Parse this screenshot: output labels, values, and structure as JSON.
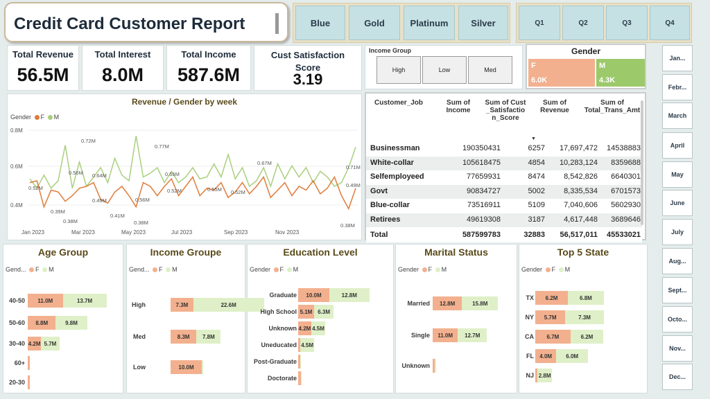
{
  "title": "Credit Card Customer Report",
  "card_category": [
    "Blue",
    "Gold",
    "Platinum",
    "Silver"
  ],
  "quarters": [
    "Q1",
    "Q2",
    "Q3",
    "Q4"
  ],
  "kpis": [
    {
      "label": "Total Revenue",
      "value": "56.5M"
    },
    {
      "label": "Total Interest",
      "value": "8.0M"
    },
    {
      "label": "Total Income",
      "value": "587.6M"
    },
    {
      "label": "Cust Satisfaction Score",
      "value": "3.19"
    }
  ],
  "income_group": {
    "title": "Income Group",
    "options": [
      "High",
      "Low",
      "Med"
    ]
  },
  "gender_card": {
    "title": "Gender",
    "f_label": "F",
    "f_value": "6.0K",
    "m_label": "M",
    "m_value": "4.3K"
  },
  "months": [
    "Jan...",
    "Febr...",
    "March",
    "April",
    "May",
    "June",
    "July",
    "Aug...",
    "Sept...",
    "Octo...",
    "Nov...",
    "Dec..."
  ],
  "line_chart": {
    "title": "Revenue / Gender by week",
    "legend_title": "Gender",
    "legend": [
      "F",
      "M"
    ],
    "y_ticks": [
      "0.8M",
      "0.6M",
      "0.4M"
    ],
    "x_ticks": [
      "Jan 2023",
      "Mar 2023",
      "May 2023",
      "Jul 2023",
      "Sep 2023",
      "Nov 2023"
    ],
    "annotations": [
      "0.52M",
      "0.39M",
      "0.72M",
      "0.56M",
      "0.38M",
      "0.49M",
      "0.64M",
      "0.41M",
      "0.56M",
      "0.38M",
      "0.77M",
      "0.52M",
      "0.55M",
      "0.55M",
      "0.52M",
      "0.67M",
      "0.71M",
      "0.49M",
      "0.38M"
    ]
  },
  "table": {
    "headers": [
      "Customer_Job",
      "Sum of Income",
      "Sum of Cust_Satisfaction_Score",
      "Sum of Revenue",
      "Sum of Total_Trans_Amt"
    ],
    "rows": [
      [
        "Businessman",
        "190350431",
        "6257",
        "17,697,472",
        "14538883"
      ],
      [
        "White-collar",
        "105618475",
        "4854",
        "10,283,124",
        "8359688"
      ],
      [
        "Selfemployeed",
        "77659931",
        "8474",
        "8,542,826",
        "6640301"
      ],
      [
        "Govt",
        "90834727",
        "5002",
        "8,335,534",
        "6701573"
      ],
      [
        "Blue-collar",
        "73516911",
        "5109",
        "7,040,606",
        "5602930"
      ],
      [
        "Retirees",
        "49619308",
        "3187",
        "4,617,448",
        "3689646"
      ]
    ],
    "total": [
      "Total",
      "587599783",
      "32883",
      "56,517,011",
      "45533021"
    ]
  },
  "age_group": {
    "title": "Age Group",
    "legend_title": "Gend...",
    "rows": [
      {
        "cat": "40-50",
        "f": "11.0M",
        "m": "13.7M"
      },
      {
        "cat": "50-60",
        "f": "8.8M",
        "m": "9.8M"
      },
      {
        "cat": "30-40",
        "f": "4.2M",
        "m": "5.7M"
      },
      {
        "cat": "60+",
        "f": "",
        "m": ""
      },
      {
        "cat": "20-30",
        "f": "",
        "m": ""
      }
    ]
  },
  "income_groupe": {
    "title": "Income Groupe",
    "legend_title": "Gend...",
    "rows": [
      {
        "cat": "High",
        "f": "7.3M",
        "m": "22.6M"
      },
      {
        "cat": "Med",
        "f": "8.3M",
        "m": "7.8M"
      },
      {
        "cat": "Low",
        "f": "10.0M",
        "m": ""
      }
    ]
  },
  "education": {
    "title": "Education Level",
    "legend_title": "Gender",
    "rows": [
      {
        "cat": "Graduate",
        "f": "10.0M",
        "m": "12.8M"
      },
      {
        "cat": "High School",
        "f": "5.1M",
        "m": "6.3M"
      },
      {
        "cat": "Unknown",
        "f": "4.2M",
        "m": "4.5M"
      },
      {
        "cat": "Uneducated",
        "f": "",
        "m": "4.5M"
      },
      {
        "cat": "Post-Graduate",
        "f": "",
        "m": ""
      },
      {
        "cat": "Doctorate",
        "f": "",
        "m": ""
      }
    ]
  },
  "marital": {
    "title": "Marital Status",
    "legend_title": "Gender",
    "rows": [
      {
        "cat": "Married",
        "f": "12.8M",
        "m": "15.8M"
      },
      {
        "cat": "Single",
        "f": "11.0M",
        "m": "12.7M"
      },
      {
        "cat": "Unknown",
        "f": "",
        "m": ""
      }
    ]
  },
  "top_state": {
    "title": "Top 5 State",
    "legend_title": "Gender",
    "rows": [
      {
        "cat": "TX",
        "f": "6.2M",
        "m": "6.8M"
      },
      {
        "cat": "NY",
        "f": "5.7M",
        "m": "7.3M"
      },
      {
        "cat": "CA",
        "f": "6.7M",
        "m": "6.2M"
      },
      {
        "cat": "FL",
        "f": "4.0M",
        "m": "6.0M"
      },
      {
        "cat": "NJ",
        "f": "",
        "m": "2.8M"
      }
    ]
  },
  "colors": {
    "female": "#f3b08e",
    "male": "#dff0c8",
    "line_f": "#e07b39",
    "line_m": "#a9cf7d",
    "slicer": "#c6e1e3"
  }
}
